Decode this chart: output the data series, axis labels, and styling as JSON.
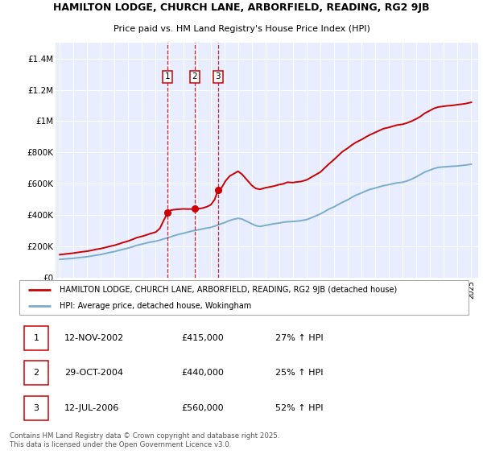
{
  "title1": "HAMILTON LODGE, CHURCH LANE, ARBORFIELD, READING, RG2 9JB",
  "title2": "Price paid vs. HM Land Registry's House Price Index (HPI)",
  "legend_red": "HAMILTON LODGE, CHURCH LANE, ARBORFIELD, READING, RG2 9JB (detached house)",
  "legend_blue": "HPI: Average price, detached house, Wokingham",
  "footer": "Contains HM Land Registry data © Crown copyright and database right 2025.\nThis data is licensed under the Open Government Licence v3.0.",
  "transactions": [
    {
      "num": 1,
      "date": "12-NOV-2002",
      "price": "£415,000",
      "hpi": "27% ↑ HPI",
      "x": 2002.87
    },
    {
      "num": 2,
      "date": "29-OCT-2004",
      "price": "£440,000",
      "hpi": "25% ↑ HPI",
      "x": 2004.83
    },
    {
      "num": 3,
      "date": "12-JUL-2006",
      "price": "£560,000",
      "hpi": "52% ↑ HPI",
      "x": 2006.53
    }
  ],
  "red_line": {
    "x": [
      1995.0,
      1995.3,
      1995.6,
      1996.0,
      1996.3,
      1996.6,
      1997.0,
      1997.3,
      1997.6,
      1998.0,
      1998.3,
      1998.6,
      1999.0,
      1999.3,
      1999.6,
      2000.0,
      2000.3,
      2000.6,
      2001.0,
      2001.3,
      2001.6,
      2002.0,
      2002.3,
      2002.6,
      2002.87,
      2003.1,
      2003.4,
      2003.7,
      2004.0,
      2004.3,
      2004.6,
      2004.83,
      2005.1,
      2005.4,
      2005.7,
      2006.0,
      2006.3,
      2006.53,
      2006.8,
      2007.1,
      2007.4,
      2007.7,
      2008.0,
      2008.3,
      2008.6,
      2009.0,
      2009.3,
      2009.6,
      2010.0,
      2010.3,
      2010.6,
      2011.0,
      2011.3,
      2011.6,
      2012.0,
      2012.3,
      2012.6,
      2013.0,
      2013.3,
      2013.6,
      2014.0,
      2014.3,
      2014.6,
      2015.0,
      2015.3,
      2015.6,
      2016.0,
      2016.3,
      2016.6,
      2017.0,
      2017.3,
      2017.6,
      2018.0,
      2018.3,
      2018.6,
      2019.0,
      2019.3,
      2019.6,
      2020.0,
      2020.3,
      2020.6,
      2021.0,
      2021.3,
      2021.6,
      2022.0,
      2022.3,
      2022.6,
      2023.0,
      2023.3,
      2023.6,
      2024.0,
      2024.3,
      2024.6,
      2025.0
    ],
    "y": [
      148000,
      151000,
      154000,
      158000,
      162000,
      166000,
      170000,
      175000,
      181000,
      187000,
      193000,
      200000,
      208000,
      216000,
      225000,
      235000,
      245000,
      256000,
      265000,
      273000,
      282000,
      292000,
      315000,
      370000,
      415000,
      432000,
      436000,
      438000,
      440000,
      439000,
      439000,
      440000,
      441000,
      445000,
      453000,
      465000,
      500000,
      560000,
      575000,
      620000,
      650000,
      665000,
      680000,
      660000,
      630000,
      590000,
      570000,
      565000,
      575000,
      580000,
      585000,
      595000,
      600000,
      610000,
      608000,
      612000,
      615000,
      625000,
      640000,
      655000,
      675000,
      700000,
      725000,
      755000,
      780000,
      805000,
      828000,
      848000,
      865000,
      882000,
      898000,
      912000,
      928000,
      940000,
      952000,
      960000,
      968000,
      975000,
      980000,
      988000,
      998000,
      1015000,
      1030000,
      1050000,
      1068000,
      1082000,
      1090000,
      1095000,
      1098000,
      1100000,
      1105000,
      1108000,
      1112000,
      1120000
    ]
  },
  "blue_line": {
    "x": [
      1995.0,
      1995.3,
      1995.6,
      1996.0,
      1996.3,
      1996.6,
      1997.0,
      1997.3,
      1997.6,
      1998.0,
      1998.3,
      1998.6,
      1999.0,
      1999.3,
      1999.6,
      2000.0,
      2000.3,
      2000.6,
      2001.0,
      2001.3,
      2001.6,
      2002.0,
      2002.3,
      2002.6,
      2003.0,
      2003.3,
      2003.6,
      2004.0,
      2004.3,
      2004.6,
      2005.0,
      2005.3,
      2005.6,
      2006.0,
      2006.3,
      2006.6,
      2007.0,
      2007.3,
      2007.6,
      2008.0,
      2008.3,
      2008.6,
      2009.0,
      2009.3,
      2009.6,
      2010.0,
      2010.3,
      2010.6,
      2011.0,
      2011.3,
      2011.6,
      2012.0,
      2012.3,
      2012.6,
      2013.0,
      2013.3,
      2013.6,
      2014.0,
      2014.3,
      2014.6,
      2015.0,
      2015.3,
      2015.6,
      2016.0,
      2016.3,
      2016.6,
      2017.0,
      2017.3,
      2017.6,
      2018.0,
      2018.3,
      2018.6,
      2019.0,
      2019.3,
      2019.6,
      2020.0,
      2020.3,
      2020.6,
      2021.0,
      2021.3,
      2021.6,
      2022.0,
      2022.3,
      2022.6,
      2023.0,
      2023.3,
      2023.6,
      2024.0,
      2024.3,
      2024.6,
      2025.0
    ],
    "y": [
      118000,
      120000,
      122000,
      125000,
      128000,
      131000,
      135000,
      139000,
      144000,
      149000,
      155000,
      161000,
      168000,
      175000,
      182000,
      190000,
      198000,
      207000,
      215000,
      222000,
      228000,
      234000,
      241000,
      249000,
      259000,
      268000,
      276000,
      284000,
      291000,
      298000,
      305000,
      310000,
      316000,
      322000,
      330000,
      340000,
      352000,
      363000,
      372000,
      380000,
      375000,
      362000,
      345000,
      333000,
      328000,
      335000,
      340000,
      345000,
      350000,
      355000,
      358000,
      360000,
      362000,
      365000,
      372000,
      382000,
      393000,
      408000,
      422000,
      438000,
      453000,
      468000,
      482000,
      498000,
      514000,
      528000,
      542000,
      554000,
      564000,
      573000,
      581000,
      588000,
      595000,
      601000,
      606000,
      610000,
      618000,
      628000,
      645000,
      660000,
      675000,
      688000,
      698000,
      705000,
      708000,
      710000,
      712000,
      714000,
      717000,
      720000,
      725000
    ]
  },
  "background_color": "#e8eeff",
  "grid_color": "#ffffff",
  "red_color": "#cc0000",
  "blue_color": "#7aadcc",
  "yticks": [
    0,
    200000,
    400000,
    600000,
    800000,
    1000000,
    1200000,
    1400000
  ],
  "ylabels": [
    "£0",
    "£200K",
    "£400K",
    "£600K",
    "£800K",
    "£1M",
    "£1.2M",
    "£1.4M"
  ],
  "ylim": [
    0,
    1500000
  ],
  "xlim": [
    1994.7,
    2025.5
  ],
  "xticks": [
    1995,
    1996,
    1997,
    1998,
    1999,
    2000,
    2001,
    2002,
    2003,
    2004,
    2005,
    2006,
    2007,
    2008,
    2009,
    2010,
    2011,
    2012,
    2013,
    2014,
    2015,
    2016,
    2017,
    2018,
    2019,
    2020,
    2021,
    2022,
    2023,
    2024,
    2025
  ]
}
